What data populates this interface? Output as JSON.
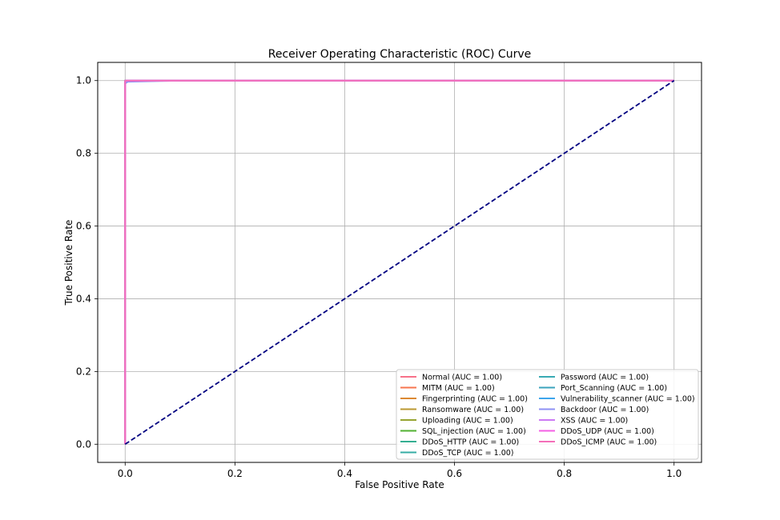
{
  "chart_data": {
    "type": "line",
    "title": "Receiver Operating Characteristic (ROC) Curve",
    "xlabel": "False Positive Rate",
    "ylabel": "True Positive Rate",
    "xlim": [
      -0.05,
      1.05
    ],
    "ylim": [
      -0.05,
      1.05
    ],
    "xticks": [
      "0.0",
      "0.2",
      "0.4",
      "0.6",
      "0.8",
      "1.0"
    ],
    "yticks": [
      "0.0",
      "0.2",
      "0.4",
      "0.6",
      "0.8",
      "1.0"
    ],
    "grid": true,
    "legend_position": "lower-right",
    "legend_columns": 2,
    "series": [
      {
        "name": "Normal (AUC = 1.00)",
        "color": "#f77189",
        "x": [
          0,
          0,
          1
        ],
        "y": [
          0,
          1,
          1
        ]
      },
      {
        "name": "MITM (AUC = 1.00)",
        "color": "#f7754f",
        "x": [
          0,
          0,
          1
        ],
        "y": [
          0,
          1,
          1
        ]
      },
      {
        "name": "Fingerprinting (AUC = 1.00)",
        "color": "#dc8932",
        "x": [
          0,
          0,
          1
        ],
        "y": [
          0,
          1,
          1
        ]
      },
      {
        "name": "Ransomware (AUC = 1.00)",
        "color": "#bb9832",
        "x": [
          0,
          0,
          1
        ],
        "y": [
          0,
          1,
          1
        ]
      },
      {
        "name": "Uploading (AUC = 1.00)",
        "color": "#97a431",
        "x": [
          0,
          0,
          1
        ],
        "y": [
          0,
          1,
          1
        ]
      },
      {
        "name": "SQL_injection (AUC = 1.00)",
        "color": "#50b131",
        "x": [
          0,
          0,
          1
        ],
        "y": [
          0,
          1,
          1
        ]
      },
      {
        "name": "DDoS_HTTP (AUC = 1.00)",
        "color": "#34ae91",
        "x": [
          0,
          0,
          1
        ],
        "y": [
          0,
          1,
          1
        ]
      },
      {
        "name": "DDoS_TCP (AUC = 1.00)",
        "color": "#36ada4",
        "x": [
          0,
          0,
          1
        ],
        "y": [
          0,
          1,
          1
        ]
      },
      {
        "name": "Password (AUC = 1.00)",
        "color": "#38aab3",
        "x": [
          0,
          0,
          1
        ],
        "y": [
          0,
          1,
          1
        ]
      },
      {
        "name": "Port_Scanning (AUC = 1.00)",
        "color": "#3ba3bc",
        "x": [
          0,
          0,
          1
        ],
        "y": [
          0,
          1,
          1
        ]
      },
      {
        "name": "Vulnerability_scanner (AUC = 1.00)",
        "color": "#3da5ec",
        "x": [
          0,
          0,
          1
        ],
        "y": [
          0,
          1,
          1
        ]
      },
      {
        "name": "Backdoor (AUC = 1.00)",
        "color": "#8e91f4",
        "x": [
          0,
          0,
          0.005,
          0.1,
          1
        ],
        "y": [
          0,
          0.992,
          0.997,
          1,
          1
        ]
      },
      {
        "name": "XSS (AUC = 1.00)",
        "color": "#cc7af4",
        "x": [
          0,
          0,
          1
        ],
        "y": [
          0,
          1,
          1
        ]
      },
      {
        "name": "DDoS_UDP (AUC = 1.00)",
        "color": "#f45fe4",
        "x": [
          0,
          0,
          1
        ],
        "y": [
          0,
          1,
          1
        ]
      },
      {
        "name": "DDoS_ICMP (AUC = 1.00)",
        "color": "#f46fb9",
        "x": [
          0,
          0,
          1
        ],
        "y": [
          0,
          1,
          1
        ]
      }
    ],
    "reference_line": {
      "x": [
        0,
        1
      ],
      "y": [
        0,
        1
      ],
      "color": "#000080",
      "style": "dashed"
    }
  }
}
